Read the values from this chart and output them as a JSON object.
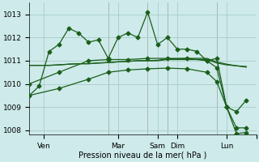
{
  "background_color": "#ceeaea",
  "grid_color": "#aacccc",
  "line_color": "#1a5e1a",
  "marker_style": "D",
  "marker_size": 2.5,
  "title": "Pression niveau de la mer( hPa )",
  "ylabel_ticks": [
    1008,
    1009,
    1010,
    1011,
    1012,
    1013
  ],
  "ylim": [
    1007.8,
    1013.5
  ],
  "xlim": [
    0,
    23
  ],
  "xtick_positions": [
    1.5,
    9,
    13,
    15,
    20,
    23
  ],
  "xtick_labels": [
    "Ven",
    "Mar",
    "Sam",
    "Dim",
    "Lun",
    ""
  ],
  "vline_positions": [
    8,
    12,
    14,
    19
  ],
  "vline_color": "#888888",
  "series": [
    {
      "x": [
        0,
        1,
        2,
        3,
        4,
        5,
        6,
        7,
        8,
        9,
        10,
        11,
        12,
        13,
        14,
        15,
        16,
        17,
        18,
        19,
        20,
        21,
        22
      ],
      "y": [
        1009.5,
        1009.9,
        1011.4,
        1011.7,
        1012.4,
        1012.2,
        1011.8,
        1011.9,
        1011.1,
        1012.0,
        1012.2,
        1012.0,
        1013.1,
        1011.7,
        1012.0,
        1011.5,
        1011.5,
        1011.4,
        1011.0,
        1011.1,
        1009.0,
        1008.8,
        1009.3
      ],
      "has_markers": true
    },
    {
      "x": [
        0,
        1,
        2,
        3,
        4,
        5,
        6,
        7,
        8,
        9,
        10,
        11,
        12,
        13,
        14,
        15,
        16,
        17,
        18,
        19,
        20,
        21,
        22
      ],
      "y": [
        1010.8,
        1010.8,
        1010.8,
        1010.82,
        1010.85,
        1010.87,
        1010.87,
        1010.9,
        1010.92,
        1010.95,
        1010.97,
        1011.0,
        1011.0,
        1011.0,
        1011.05,
        1011.05,
        1011.05,
        1011.05,
        1011.05,
        1010.9,
        1010.82,
        1010.78,
        1010.75
      ],
      "has_markers": false
    },
    {
      "x": [
        0,
        1,
        2,
        3,
        4,
        5,
        6,
        7,
        8,
        9,
        10,
        11,
        12,
        13,
        14,
        15,
        16,
        17,
        18,
        19,
        20,
        21,
        22
      ],
      "y": [
        1010.8,
        1010.8,
        1010.8,
        1010.82,
        1010.85,
        1010.87,
        1010.87,
        1010.9,
        1010.92,
        1010.95,
        1010.97,
        1011.0,
        1011.0,
        1011.02,
        1011.08,
        1011.08,
        1011.1,
        1011.1,
        1011.1,
        1010.95,
        1010.85,
        1010.78,
        1010.72
      ],
      "has_markers": false
    },
    {
      "x": [
        0,
        3,
        6,
        8,
        10,
        12,
        14,
        16,
        18,
        19,
        20,
        21,
        22
      ],
      "y": [
        1010.0,
        1010.5,
        1011.0,
        1011.05,
        1011.05,
        1011.1,
        1011.1,
        1011.1,
        1011.0,
        1010.7,
        1009.0,
        1007.85,
        1007.9
      ],
      "has_markers": true
    },
    {
      "x": [
        0,
        3,
        6,
        8,
        10,
        12,
        14,
        16,
        18,
        19,
        20,
        21,
        22
      ],
      "y": [
        1009.5,
        1009.8,
        1010.2,
        1010.5,
        1010.6,
        1010.65,
        1010.68,
        1010.65,
        1010.5,
        1010.1,
        1009.0,
        1008.1,
        1008.1
      ],
      "has_markers": true
    }
  ]
}
